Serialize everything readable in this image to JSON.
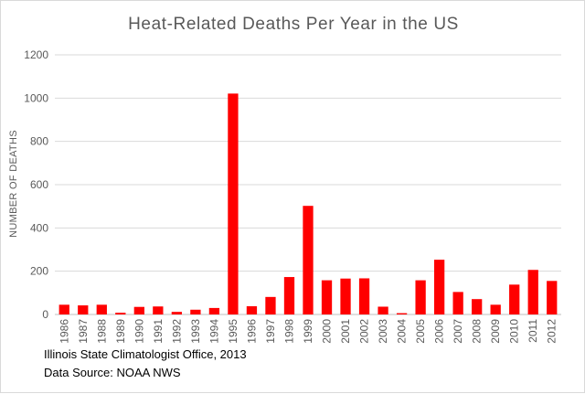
{
  "chart_data": {
    "type": "bar",
    "title": "Heat-Related  Deaths Per Year in the US",
    "ylabel": "NUMBER OF DEATHS",
    "xlabel": "",
    "ylim": [
      0,
      1200
    ],
    "yticks": [
      0,
      200,
      400,
      600,
      800,
      1000,
      1200
    ],
    "grid": true,
    "bar_color": "#ff0000",
    "categories": [
      "1986",
      "1987",
      "1988",
      "1989",
      "1990",
      "1991",
      "1992",
      "1993",
      "1994",
      "1995",
      "1996",
      "1997",
      "1998",
      "1999",
      "2000",
      "2001",
      "2002",
      "2003",
      "2004",
      "2005",
      "2006",
      "2007",
      "2008",
      "2009",
      "2010",
      "2011",
      "2012"
    ],
    "values": [
      45,
      42,
      45,
      8,
      35,
      37,
      12,
      22,
      30,
      1021,
      38,
      81,
      173,
      502,
      158,
      166,
      167,
      36,
      6,
      158,
      253,
      104,
      71,
      45,
      138,
      206,
      155
    ]
  },
  "source_notes": [
    "Illinois State Climatologist Office, 2013",
    "Data Source: NOAA NWS"
  ]
}
